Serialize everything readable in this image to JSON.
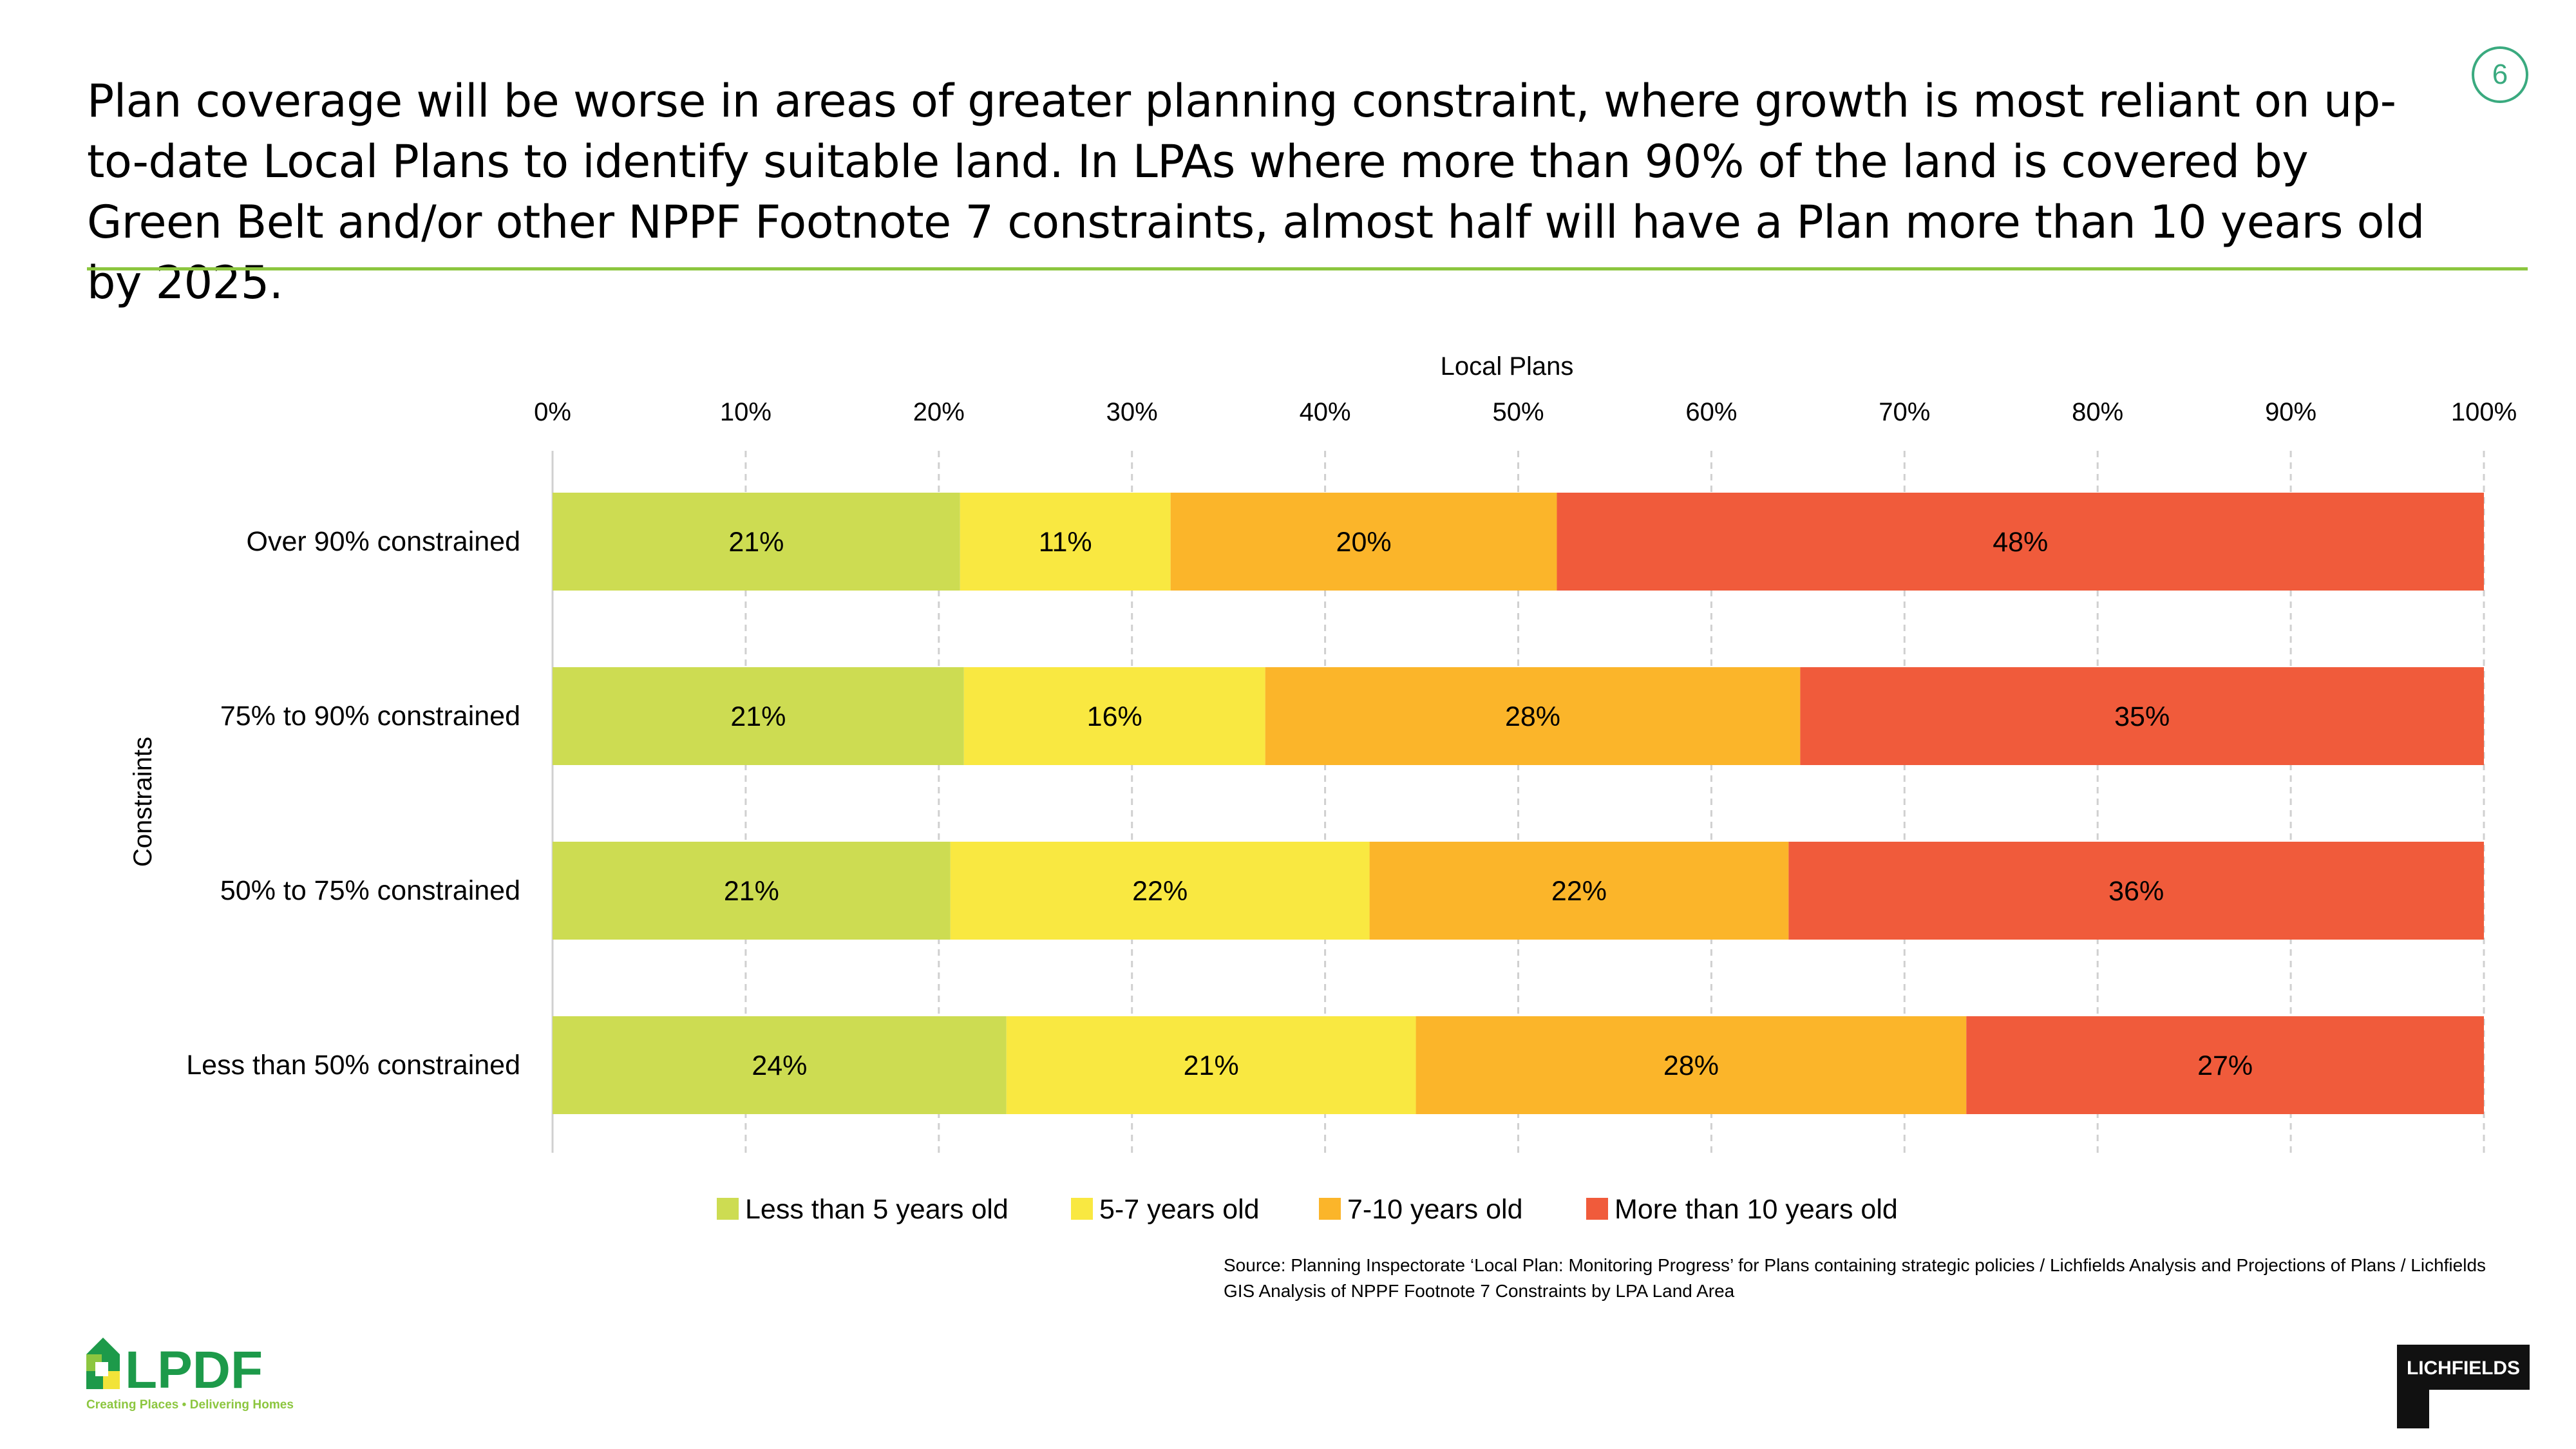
{
  "header": {
    "title": "Plan coverage will be worse in areas of greater planning constraint, where growth is most reliant on up-to-date Local Plans to identify suitable land. In LPAs where more than 90% of the land is covered by Green Belt and/or other NPPF Footnote 7 constraints, almost half will have a Plan more than 10 years old by 2025.",
    "page_number": "6"
  },
  "chart_data": {
    "type": "bar",
    "orientation": "horizontal",
    "stacked": true,
    "xlabel": "Local Plans",
    "ylabel": "Constraints",
    "xlim": [
      0,
      100
    ],
    "x_ticks": [
      "0%",
      "10%",
      "20%",
      "30%",
      "40%",
      "50%",
      "60%",
      "70%",
      "80%",
      "90%",
      "100%"
    ],
    "grid": "vertical dashed",
    "legend_position": "bottom",
    "categories": [
      "Over 90% constrained",
      "75% to 90% constrained",
      "50% to 75% constrained",
      "Less than 50% constrained"
    ],
    "series": [
      {
        "name": "Less than 5 years old",
        "color": "#cddc52",
        "values": [
          21.1,
          21.3,
          20.6,
          23.5
        ],
        "labels": [
          "21%",
          "21%",
          "21%",
          "24%"
        ]
      },
      {
        "name": "5-7 years old",
        "color": "#f9e841",
        "values": [
          10.9,
          15.6,
          21.7,
          21.2
        ],
        "labels": [
          "11%",
          "16%",
          "22%",
          "21%"
        ]
      },
      {
        "name": "7-10 years old",
        "color": "#fbb52a",
        "values": [
          20.0,
          27.7,
          21.7,
          28.5
        ],
        "labels": [
          "20%",
          "28%",
          "22%",
          "28%"
        ]
      },
      {
        "name": "More than 10 years old",
        "color": "#f05b3b",
        "values": [
          48.0,
          35.4,
          36.0,
          26.8
        ],
        "labels": [
          "48%",
          "35%",
          "36%",
          "27%"
        ]
      }
    ]
  },
  "footer": {
    "source": "Source: Planning Inspectorate ‘Local Plan: Monitoring Progress’ for Plans containing strategic policies / Lichfields Analysis and Projections of Plans / Lichfields GIS Analysis of NPPF Footnote 7 Constraints by LPA Land Area",
    "lpdf_logo_text": "LPDF",
    "lpdf_tagline": "Creating Places • Delivering Homes",
    "lichfields_logo_text": "LICHFIELDS"
  }
}
